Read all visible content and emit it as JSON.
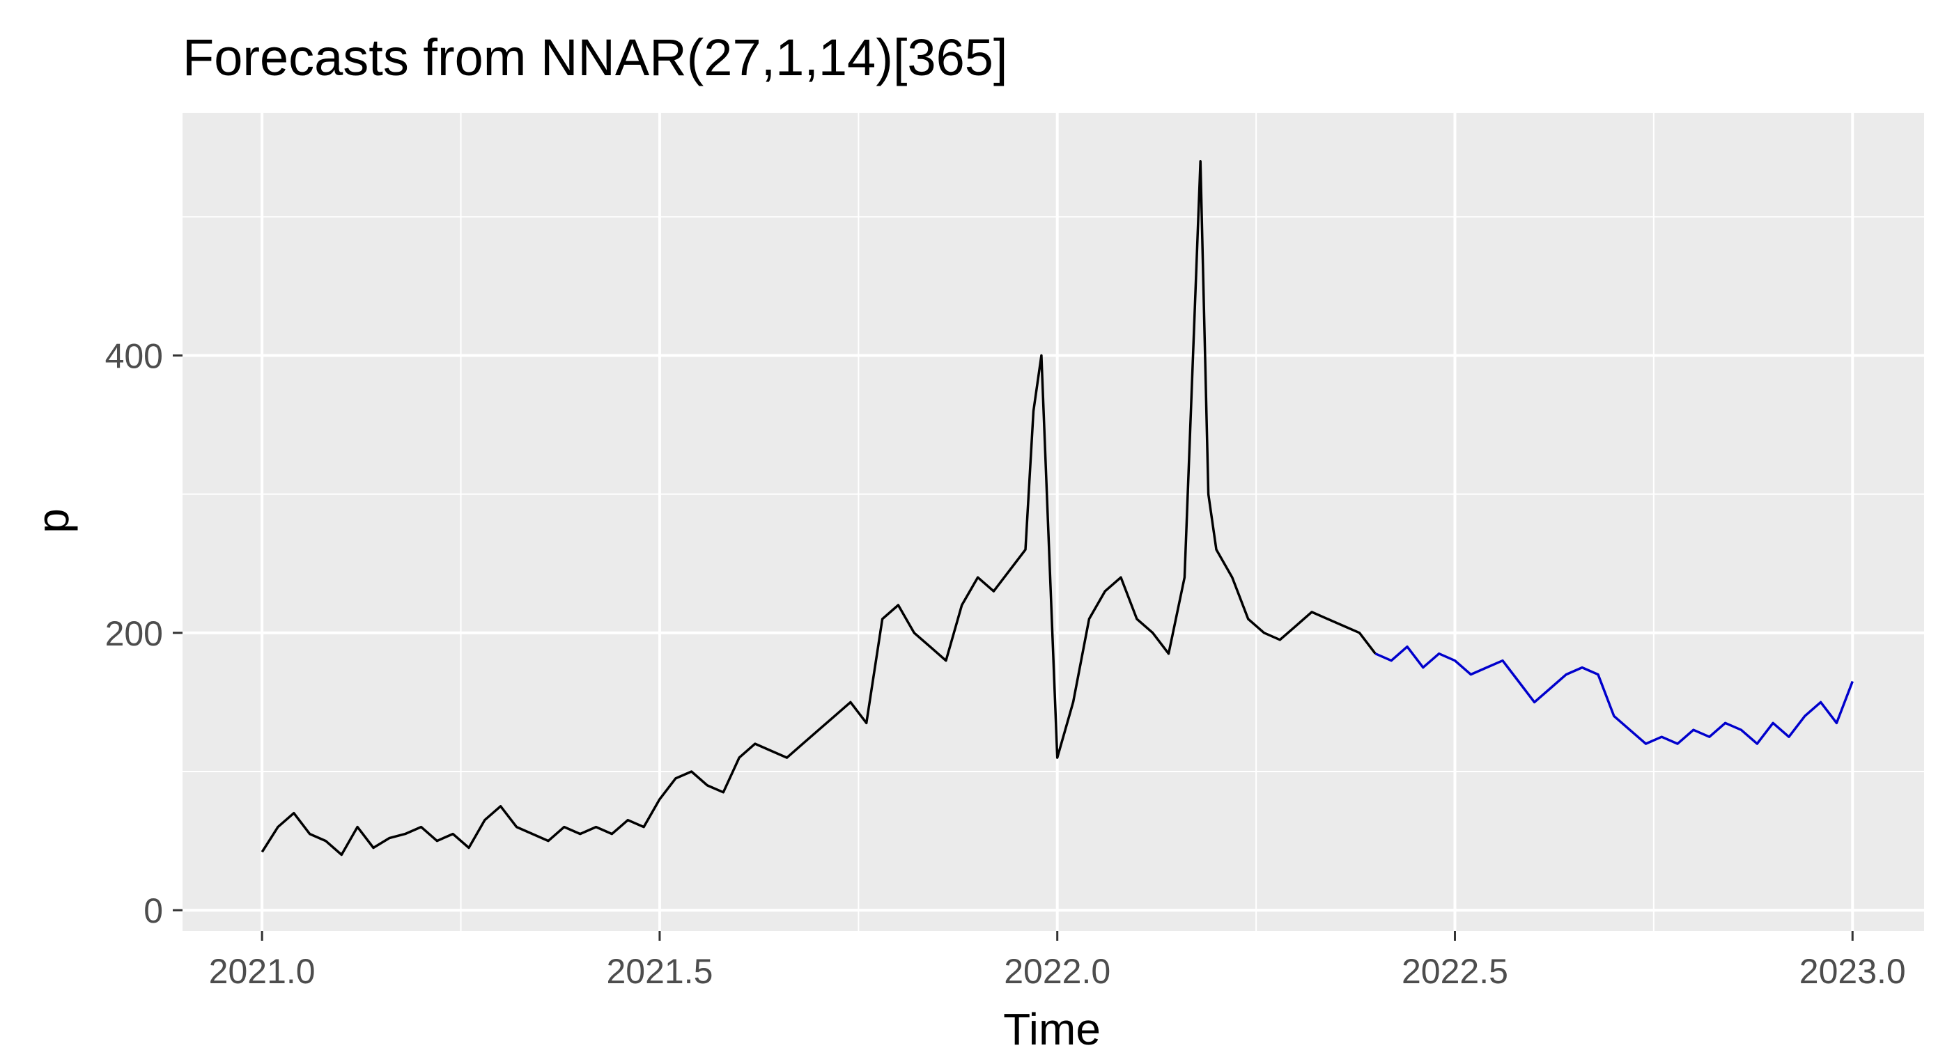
{
  "chart_data": {
    "type": "line",
    "title": "Forecasts from NNAR(27,1,14)[365]",
    "xlabel": "Time",
    "ylabel": "p",
    "xlim": [
      2020.9,
      2023.09
    ],
    "ylim": [
      -15,
      575
    ],
    "x_ticks": [
      2021.0,
      2021.5,
      2022.0,
      2022.5,
      2023.0
    ],
    "x_tick_labels": [
      "2021.0",
      "2021.5",
      "2022.0",
      "2022.5",
      "2023.0"
    ],
    "x_minor_ticks": [
      2021.25,
      2021.75,
      2022.25,
      2022.75
    ],
    "y_ticks": [
      0,
      200,
      400
    ],
    "y_tick_labels": [
      "0",
      "200",
      "400"
    ],
    "y_minor_ticks": [
      100,
      300,
      500
    ],
    "grid": true,
    "background": "#ebebeb",
    "series": [
      {
        "role": "observed",
        "color": "#000000",
        "x": [
          2021.0,
          2021.02,
          2021.04,
          2021.06,
          2021.08,
          2021.1,
          2021.12,
          2021.14,
          2021.16,
          2021.18,
          2021.2,
          2021.22,
          2021.24,
          2021.26,
          2021.28,
          2021.3,
          2021.32,
          2021.34,
          2021.36,
          2021.38,
          2021.4,
          2021.42,
          2021.44,
          2021.46,
          2021.48,
          2021.5,
          2021.52,
          2021.54,
          2021.56,
          2021.58,
          2021.6,
          2021.62,
          2021.64,
          2021.66,
          2021.68,
          2021.7,
          2021.72,
          2021.74,
          2021.76,
          2021.78,
          2021.8,
          2021.82,
          2021.84,
          2021.86,
          2021.88,
          2021.9,
          2021.92,
          2021.94,
          2021.96,
          2021.97,
          2021.98,
          2022.0,
          2022.02,
          2022.04,
          2022.06,
          2022.08,
          2022.1,
          2022.12,
          2022.14,
          2022.16,
          2022.18,
          2022.19,
          2022.2,
          2022.22,
          2022.24,
          2022.26,
          2022.28,
          2022.3,
          2022.32,
          2022.34,
          2022.36,
          2022.38,
          2022.4
        ],
        "y": [
          42,
          60,
          70,
          55,
          50,
          40,
          60,
          45,
          52,
          55,
          60,
          50,
          55,
          45,
          65,
          75,
          60,
          55,
          50,
          60,
          55,
          60,
          55,
          65,
          60,
          80,
          95,
          100,
          90,
          85,
          110,
          120,
          115,
          110,
          120,
          130,
          140,
          150,
          135,
          210,
          220,
          200,
          190,
          180,
          220,
          240,
          230,
          245,
          260,
          360,
          400,
          110,
          150,
          210,
          230,
          240,
          210,
          200,
          185,
          240,
          540,
          300,
          260,
          240,
          210,
          200,
          195,
          205,
          215,
          210,
          205,
          200,
          185
        ]
      },
      {
        "role": "forecast",
        "color": "#0000cc",
        "x": [
          2022.4,
          2022.42,
          2022.44,
          2022.46,
          2022.48,
          2022.5,
          2022.52,
          2022.54,
          2022.56,
          2022.58,
          2022.6,
          2022.62,
          2022.64,
          2022.66,
          2022.68,
          2022.7,
          2022.72,
          2022.74,
          2022.76,
          2022.78,
          2022.8,
          2022.82,
          2022.84,
          2022.86,
          2022.88,
          2022.9,
          2022.92,
          2022.94,
          2022.96,
          2022.98,
          2023.0
        ],
        "y": [
          185,
          180,
          190,
          175,
          185,
          180,
          170,
          175,
          180,
          165,
          150,
          160,
          170,
          175,
          170,
          140,
          130,
          120,
          125,
          120,
          130,
          125,
          135,
          130,
          120,
          135,
          125,
          140,
          150,
          135,
          165
        ]
      }
    ]
  }
}
